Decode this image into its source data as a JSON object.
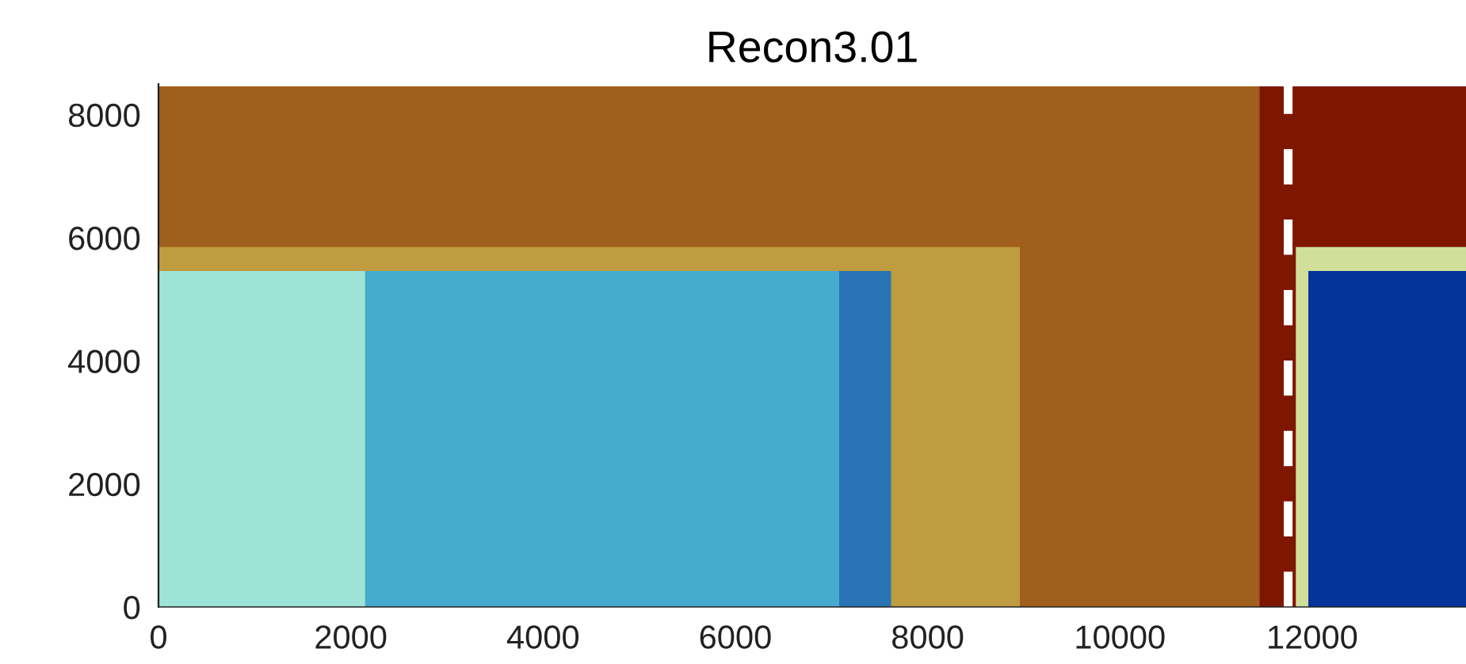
{
  "chart_data": {
    "type": "area",
    "title": "Recon3.01",
    "series": [
      {
        "color": "#a05f1c",
        "x": [
          0,
          11450
        ],
        "values": [
          8460,
          8460
        ]
      },
      {
        "color": "#7e1700",
        "x": [
          11450,
          13600
        ],
        "values": [
          8460,
          8460
        ]
      },
      {
        "color": "#be9c3f",
        "x": [
          0,
          8960
        ],
        "values": [
          5850,
          5850
        ]
      },
      {
        "color": "#d2df9a",
        "x": [
          11830,
          13600
        ],
        "values": [
          5850,
          5850
        ]
      },
      {
        "color": "#9de3d6",
        "x": [
          0,
          2150
        ],
        "values": [
          5460,
          5460
        ]
      },
      {
        "color": "#45abcc",
        "x": [
          2150,
          7080
        ],
        "values": [
          5460,
          5460
        ]
      },
      {
        "color": "#2874b5",
        "x": [
          7080,
          7620
        ],
        "values": [
          5460,
          5460
        ]
      },
      {
        "color": "#043399",
        "x": [
          11960,
          13600
        ],
        "values": [
          5460,
          5460
        ]
      }
    ],
    "ref_lines": [
      {
        "axis": "x",
        "value": 11750,
        "label": null,
        "color": "#ffffff",
        "line_style": "dashed"
      }
    ],
    "xlim": [
      0,
      13600
    ],
    "ylim": [
      0,
      8500
    ],
    "xticks": [
      0,
      2000,
      4000,
      6000,
      8000,
      10000,
      12000
    ],
    "yticks": [
      0,
      2000,
      4000,
      6000,
      8000
    ],
    "grid": false,
    "legend": false
  }
}
